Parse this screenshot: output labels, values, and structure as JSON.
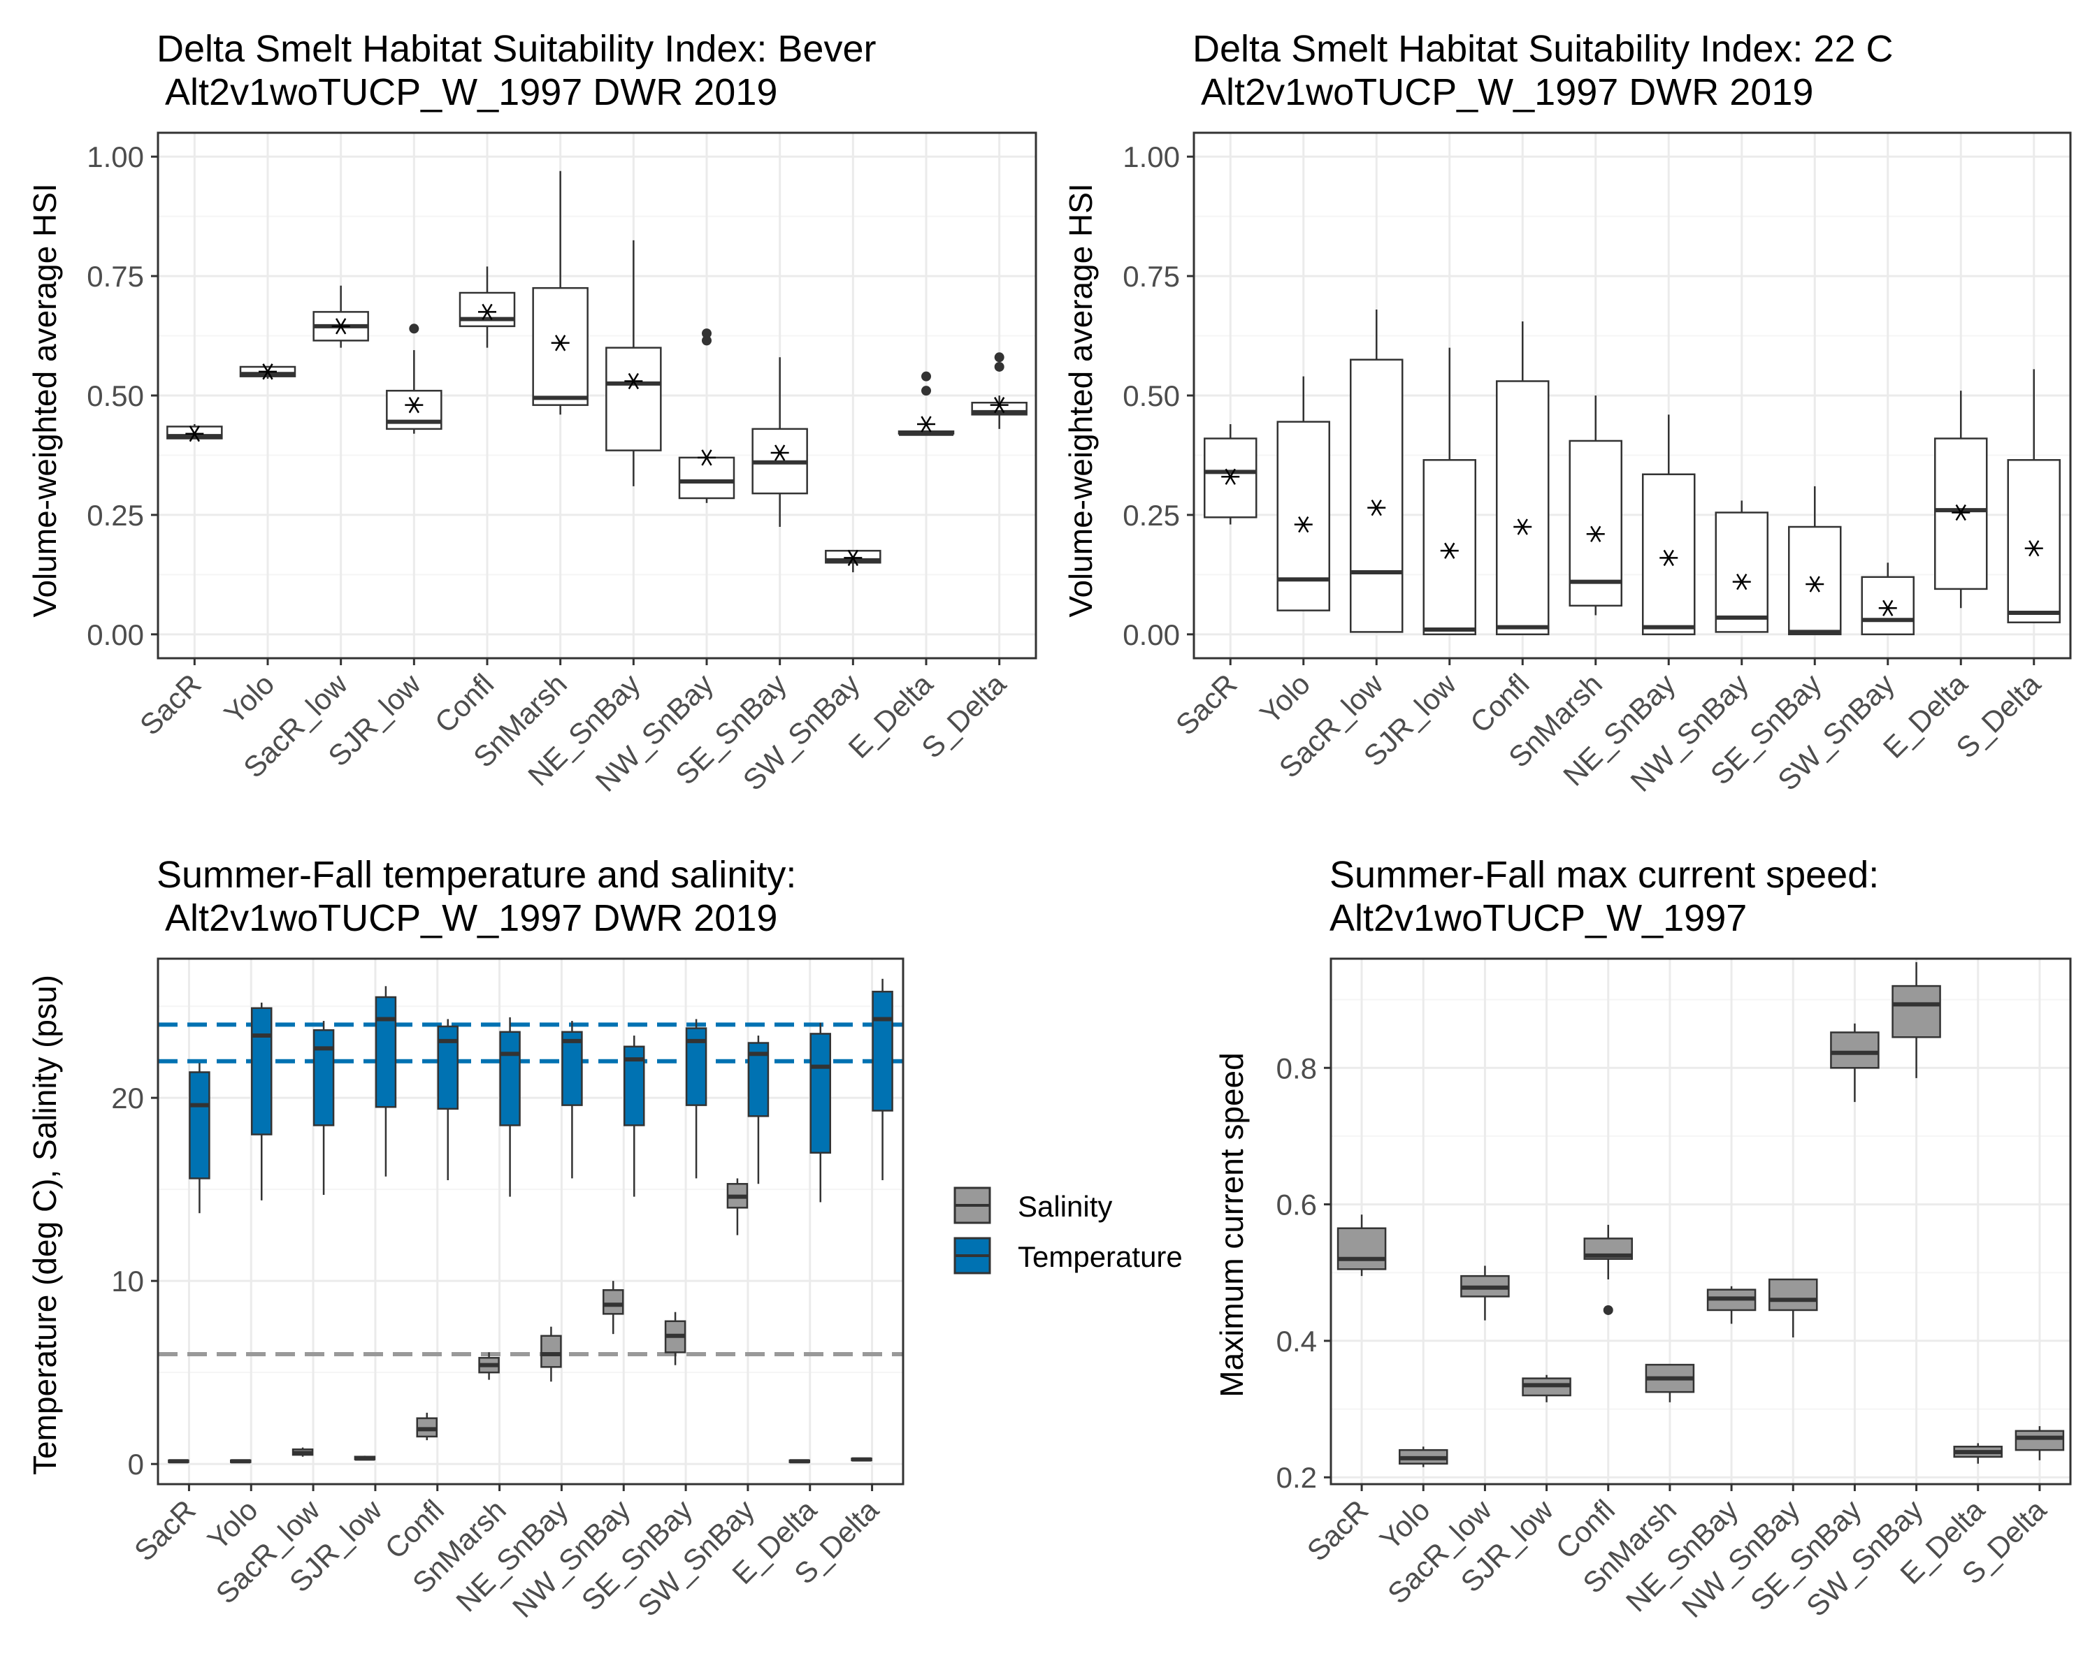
{
  "colors": {
    "panel_border": "#333333",
    "grid_major": "#ebebeb",
    "grid_minor": "#f5f5f5",
    "box_line": "#333333",
    "box_fill_white": "#ffffff",
    "salinity_fill": "#999999",
    "temperature_fill": "#0072b2",
    "temperature_ref_line": "#0072b2",
    "salinity_ref_line": "#999999",
    "tick_label": "#4d4d4d",
    "title_text": "#000000"
  },
  "chart_data": [
    {
      "type": "box",
      "title": "Delta Smelt Habitat Suitability Index: Bever",
      "subtitle": " Alt2v1woTUCP_W_1997 DWR 2019",
      "xlabel": "",
      "ylabel": "Volume-weighted average HSI",
      "ylim": [
        -0.05,
        1.05
      ],
      "yticks": [
        0,
        0.25,
        0.5,
        0.75,
        1
      ],
      "ytick_labels": [
        "0.00",
        "0.25",
        "0.50",
        "0.75",
        "1.00"
      ],
      "grid": true,
      "mean_marker": "asterisk",
      "categories": [
        "SacR",
        "Yolo",
        "SacR_low",
        "SJR_low",
        "Confl",
        "SnMarsh",
        "NE_SnBay",
        "NW_SnBay",
        "SE_SnBay",
        "SW_SnBay",
        "E_Delta",
        "S_Delta"
      ],
      "boxes": [
        {
          "min": 0.41,
          "q1": 0.41,
          "median": 0.415,
          "q3": 0.435,
          "max": 0.44,
          "mean": 0.42,
          "outliers": []
        },
        {
          "min": 0.535,
          "q1": 0.54,
          "median": 0.545,
          "q3": 0.56,
          "max": 0.56,
          "mean": 0.55,
          "outliers": []
        },
        {
          "min": 0.6,
          "q1": 0.615,
          "median": 0.645,
          "q3": 0.675,
          "max": 0.73,
          "mean": 0.645,
          "outliers": []
        },
        {
          "min": 0.42,
          "q1": 0.43,
          "median": 0.445,
          "q3": 0.51,
          "max": 0.595,
          "mean": 0.48,
          "outliers": [
            0.64
          ]
        },
        {
          "min": 0.6,
          "q1": 0.645,
          "median": 0.66,
          "q3": 0.715,
          "max": 0.77,
          "mean": 0.675,
          "outliers": []
        },
        {
          "min": 0.46,
          "q1": 0.48,
          "median": 0.495,
          "q3": 0.725,
          "max": 0.97,
          "mean": 0.61,
          "outliers": []
        },
        {
          "min": 0.31,
          "q1": 0.385,
          "median": 0.525,
          "q3": 0.6,
          "max": 0.825,
          "mean": 0.53,
          "outliers": []
        },
        {
          "min": 0.275,
          "q1": 0.285,
          "median": 0.32,
          "q3": 0.37,
          "max": 0.37,
          "mean": 0.37,
          "outliers": [
            0.615,
            0.63
          ]
        },
        {
          "min": 0.225,
          "q1": 0.295,
          "median": 0.36,
          "q3": 0.43,
          "max": 0.58,
          "mean": 0.38,
          "outliers": []
        },
        {
          "min": 0.13,
          "q1": 0.15,
          "median": 0.155,
          "q3": 0.175,
          "max": 0.175,
          "mean": 0.16,
          "outliers": []
        },
        {
          "min": 0.42,
          "q1": 0.42,
          "median": 0.42,
          "q3": 0.425,
          "max": 0.425,
          "mean": 0.44,
          "outliers": [
            0.51,
            0.54
          ]
        },
        {
          "min": 0.43,
          "q1": 0.46,
          "median": 0.465,
          "q3": 0.485,
          "max": 0.5,
          "mean": 0.48,
          "outliers": [
            0.56,
            0.58
          ]
        }
      ]
    },
    {
      "type": "box",
      "title": "Delta Smelt Habitat Suitability Index: 22 C",
      "subtitle": " Alt2v1woTUCP_W_1997 DWR 2019",
      "xlabel": "",
      "ylabel": "Volume-weighted average HSI",
      "ylim": [
        -0.05,
        1.05
      ],
      "yticks": [
        0,
        0.25,
        0.5,
        0.75,
        1
      ],
      "ytick_labels": [
        "0.00",
        "0.25",
        "0.50",
        "0.75",
        "1.00"
      ],
      "grid": true,
      "mean_marker": "asterisk",
      "categories": [
        "SacR",
        "Yolo",
        "SacR_low",
        "SJR_low",
        "Confl",
        "SnMarsh",
        "NE_SnBay",
        "NW_SnBay",
        "SE_SnBay",
        "SW_SnBay",
        "E_Delta",
        "S_Delta"
      ],
      "boxes": [
        {
          "min": 0.23,
          "q1": 0.245,
          "median": 0.34,
          "q3": 0.41,
          "max": 0.44,
          "mean": 0.33,
          "outliers": []
        },
        {
          "min": 0.05,
          "q1": 0.05,
          "median": 0.115,
          "q3": 0.445,
          "max": 0.54,
          "mean": 0.23,
          "outliers": []
        },
        {
          "min": 0.005,
          "q1": 0.005,
          "median": 0.13,
          "q3": 0.575,
          "max": 0.68,
          "mean": 0.265,
          "outliers": []
        },
        {
          "min": 0.0,
          "q1": 0.0,
          "median": 0.01,
          "q3": 0.365,
          "max": 0.6,
          "mean": 0.175,
          "outliers": []
        },
        {
          "min": 0.0,
          "q1": 0.0,
          "median": 0.015,
          "q3": 0.53,
          "max": 0.655,
          "mean": 0.225,
          "outliers": []
        },
        {
          "min": 0.04,
          "q1": 0.06,
          "median": 0.11,
          "q3": 0.405,
          "max": 0.5,
          "mean": 0.21,
          "outliers": []
        },
        {
          "min": 0.0,
          "q1": 0.0,
          "median": 0.015,
          "q3": 0.335,
          "max": 0.46,
          "mean": 0.16,
          "outliers": []
        },
        {
          "min": 0.005,
          "q1": 0.005,
          "median": 0.035,
          "q3": 0.255,
          "max": 0.28,
          "mean": 0.11,
          "outliers": []
        },
        {
          "min": 0.0,
          "q1": 0.0,
          "median": 0.005,
          "q3": 0.225,
          "max": 0.31,
          "mean": 0.105,
          "outliers": []
        },
        {
          "min": 0.0,
          "q1": 0.0,
          "median": 0.03,
          "q3": 0.12,
          "max": 0.15,
          "mean": 0.055,
          "outliers": []
        },
        {
          "min": 0.055,
          "q1": 0.095,
          "median": 0.26,
          "q3": 0.41,
          "max": 0.51,
          "mean": 0.255,
          "outliers": []
        },
        {
          "min": 0.025,
          "q1": 0.025,
          "median": 0.045,
          "q3": 0.365,
          "max": 0.555,
          "mean": 0.18,
          "outliers": []
        }
      ]
    },
    {
      "type": "box",
      "title": "Summer-Fall temperature and salinity:",
      "subtitle": " Alt2v1woTUCP_W_1997 DWR 2019",
      "xlabel": "",
      "ylabel": "Temperature (deg C), Salinity (psu)",
      "ylim": [
        -1.1,
        27.6
      ],
      "yticks": [
        0,
        10,
        20
      ],
      "ytick_labels": [
        "0",
        "10",
        "20"
      ],
      "grid": true,
      "reference_lines": [
        {
          "value": 24,
          "color": "#0072b2"
        },
        {
          "value": 22,
          "color": "#0072b2"
        },
        {
          "value": 6,
          "color": "#999999"
        }
      ],
      "legend": {
        "position": "right",
        "entries": [
          "Salinity",
          "Temperature"
        ]
      },
      "categories": [
        "SacR",
        "Yolo",
        "SacR_low",
        "SJR_low",
        "Confl",
        "SnMarsh",
        "NE_SnBay",
        "NW_SnBay",
        "SE_SnBay",
        "SW_SnBay",
        "E_Delta",
        "S_Delta"
      ],
      "series": [
        {
          "name": "Salinity",
          "boxes": [
            {
              "min": 0.1,
              "q1": 0.1,
              "median": 0.15,
              "q3": 0.2,
              "max": 0.2,
              "outliers": []
            },
            {
              "min": 0.1,
              "q1": 0.1,
              "median": 0.15,
              "q3": 0.2,
              "max": 0.2,
              "outliers": []
            },
            {
              "min": 0.4,
              "q1": 0.5,
              "median": 0.6,
              "q3": 0.8,
              "max": 0.9,
              "outliers": []
            },
            {
              "min": 0.2,
              "q1": 0.25,
              "median": 0.3,
              "q3": 0.4,
              "max": 0.45,
              "outliers": []
            },
            {
              "min": 1.3,
              "q1": 1.5,
              "median": 1.9,
              "q3": 2.5,
              "max": 2.8,
              "outliers": []
            },
            {
              "min": 4.6,
              "q1": 5.0,
              "median": 5.4,
              "q3": 5.8,
              "max": 6.1,
              "outliers": []
            },
            {
              "min": 4.5,
              "q1": 5.3,
              "median": 6.0,
              "q3": 7.0,
              "max": 7.5,
              "outliers": []
            },
            {
              "min": 7.1,
              "q1": 8.2,
              "median": 8.7,
              "q3": 9.5,
              "max": 10.0,
              "outliers": []
            },
            {
              "min": 5.4,
              "q1": 6.1,
              "median": 7.0,
              "q3": 7.8,
              "max": 8.3,
              "outliers": []
            },
            {
              "min": 12.5,
              "q1": 14.0,
              "median": 14.6,
              "q3": 15.3,
              "max": 15.6,
              "outliers": []
            },
            {
              "min": 0.1,
              "q1": 0.1,
              "median": 0.15,
              "q3": 0.2,
              "max": 0.2,
              "outliers": []
            },
            {
              "min": 0.15,
              "q1": 0.2,
              "median": 0.25,
              "q3": 0.3,
              "max": 0.35,
              "outliers": []
            }
          ]
        },
        {
          "name": "Temperature",
          "boxes": [
            {
              "min": 13.7,
              "q1": 15.6,
              "median": 19.6,
              "q3": 21.4,
              "max": 21.9,
              "outliers": []
            },
            {
              "min": 14.4,
              "q1": 18.0,
              "median": 23.4,
              "q3": 24.9,
              "max": 25.2,
              "outliers": []
            },
            {
              "min": 14.7,
              "q1": 18.5,
              "median": 22.7,
              "q3": 23.7,
              "max": 24.2,
              "outliers": []
            },
            {
              "min": 15.7,
              "q1": 19.5,
              "median": 24.3,
              "q3": 25.5,
              "max": 26.1,
              "outliers": []
            },
            {
              "min": 15.5,
              "q1": 19.4,
              "median": 23.1,
              "q3": 23.9,
              "max": 24.3,
              "outliers": []
            },
            {
              "min": 14.6,
              "q1": 18.5,
              "median": 22.4,
              "q3": 23.6,
              "max": 24.4,
              "outliers": []
            },
            {
              "min": 15.6,
              "q1": 19.6,
              "median": 23.1,
              "q3": 23.6,
              "max": 24.2,
              "outliers": []
            },
            {
              "min": 14.6,
              "q1": 18.5,
              "median": 22.1,
              "q3": 22.8,
              "max": 23.4,
              "outliers": []
            },
            {
              "min": 15.6,
              "q1": 19.6,
              "median": 23.1,
              "q3": 23.8,
              "max": 24.3,
              "outliers": []
            },
            {
              "min": 15.3,
              "q1": 19.0,
              "median": 22.4,
              "q3": 23.0,
              "max": 23.4,
              "outliers": []
            },
            {
              "min": 14.3,
              "q1": 17.0,
              "median": 21.7,
              "q3": 23.5,
              "max": 24.1,
              "outliers": []
            },
            {
              "min": 15.5,
              "q1": 19.3,
              "median": 24.3,
              "q3": 25.8,
              "max": 26.5,
              "outliers": []
            }
          ]
        }
      ]
    },
    {
      "type": "box",
      "title": "Summer-Fall max current speed:",
      "subtitle": "Alt2v1woTUCP_W_1997",
      "xlabel": "",
      "ylabel": "Maximum current speed",
      "ylim": [
        0.19,
        0.96
      ],
      "yticks": [
        0.2,
        0.4,
        0.6,
        0.8
      ],
      "ytick_labels": [
        "0.2",
        "0.4",
        "0.6",
        "0.8"
      ],
      "grid": true,
      "categories": [
        "SacR",
        "Yolo",
        "SacR_low",
        "SJR_low",
        "Confl",
        "SnMarsh",
        "NE_SnBay",
        "NW_SnBay",
        "SE_SnBay",
        "SW_SnBay",
        "E_Delta",
        "S_Delta"
      ],
      "boxes": [
        {
          "min": 0.495,
          "q1": 0.505,
          "median": 0.52,
          "q3": 0.565,
          "max": 0.585,
          "outliers": []
        },
        {
          "min": 0.215,
          "q1": 0.22,
          "median": 0.228,
          "q3": 0.24,
          "max": 0.245,
          "outliers": []
        },
        {
          "min": 0.43,
          "q1": 0.465,
          "median": 0.478,
          "q3": 0.495,
          "max": 0.51,
          "outliers": []
        },
        {
          "min": 0.31,
          "q1": 0.32,
          "median": 0.335,
          "q3": 0.345,
          "max": 0.35,
          "outliers": []
        },
        {
          "min": 0.49,
          "q1": 0.52,
          "median": 0.525,
          "q3": 0.55,
          "max": 0.57,
          "outliers": [
            0.445
          ]
        },
        {
          "min": 0.31,
          "q1": 0.325,
          "median": 0.345,
          "q3": 0.365,
          "max": 0.365,
          "outliers": []
        },
        {
          "min": 0.425,
          "q1": 0.445,
          "median": 0.462,
          "q3": 0.475,
          "max": 0.48,
          "outliers": []
        },
        {
          "min": 0.405,
          "q1": 0.445,
          "median": 0.46,
          "q3": 0.49,
          "max": 0.49,
          "outliers": []
        },
        {
          "min": 0.75,
          "q1": 0.8,
          "median": 0.822,
          "q3": 0.852,
          "max": 0.865,
          "outliers": []
        },
        {
          "min": 0.785,
          "q1": 0.845,
          "median": 0.893,
          "q3": 0.92,
          "max": 0.955,
          "outliers": []
        },
        {
          "min": 0.22,
          "q1": 0.23,
          "median": 0.237,
          "q3": 0.245,
          "max": 0.25,
          "outliers": []
        },
        {
          "min": 0.225,
          "q1": 0.24,
          "median": 0.258,
          "q3": 0.268,
          "max": 0.275,
          "outliers": []
        }
      ]
    }
  ]
}
